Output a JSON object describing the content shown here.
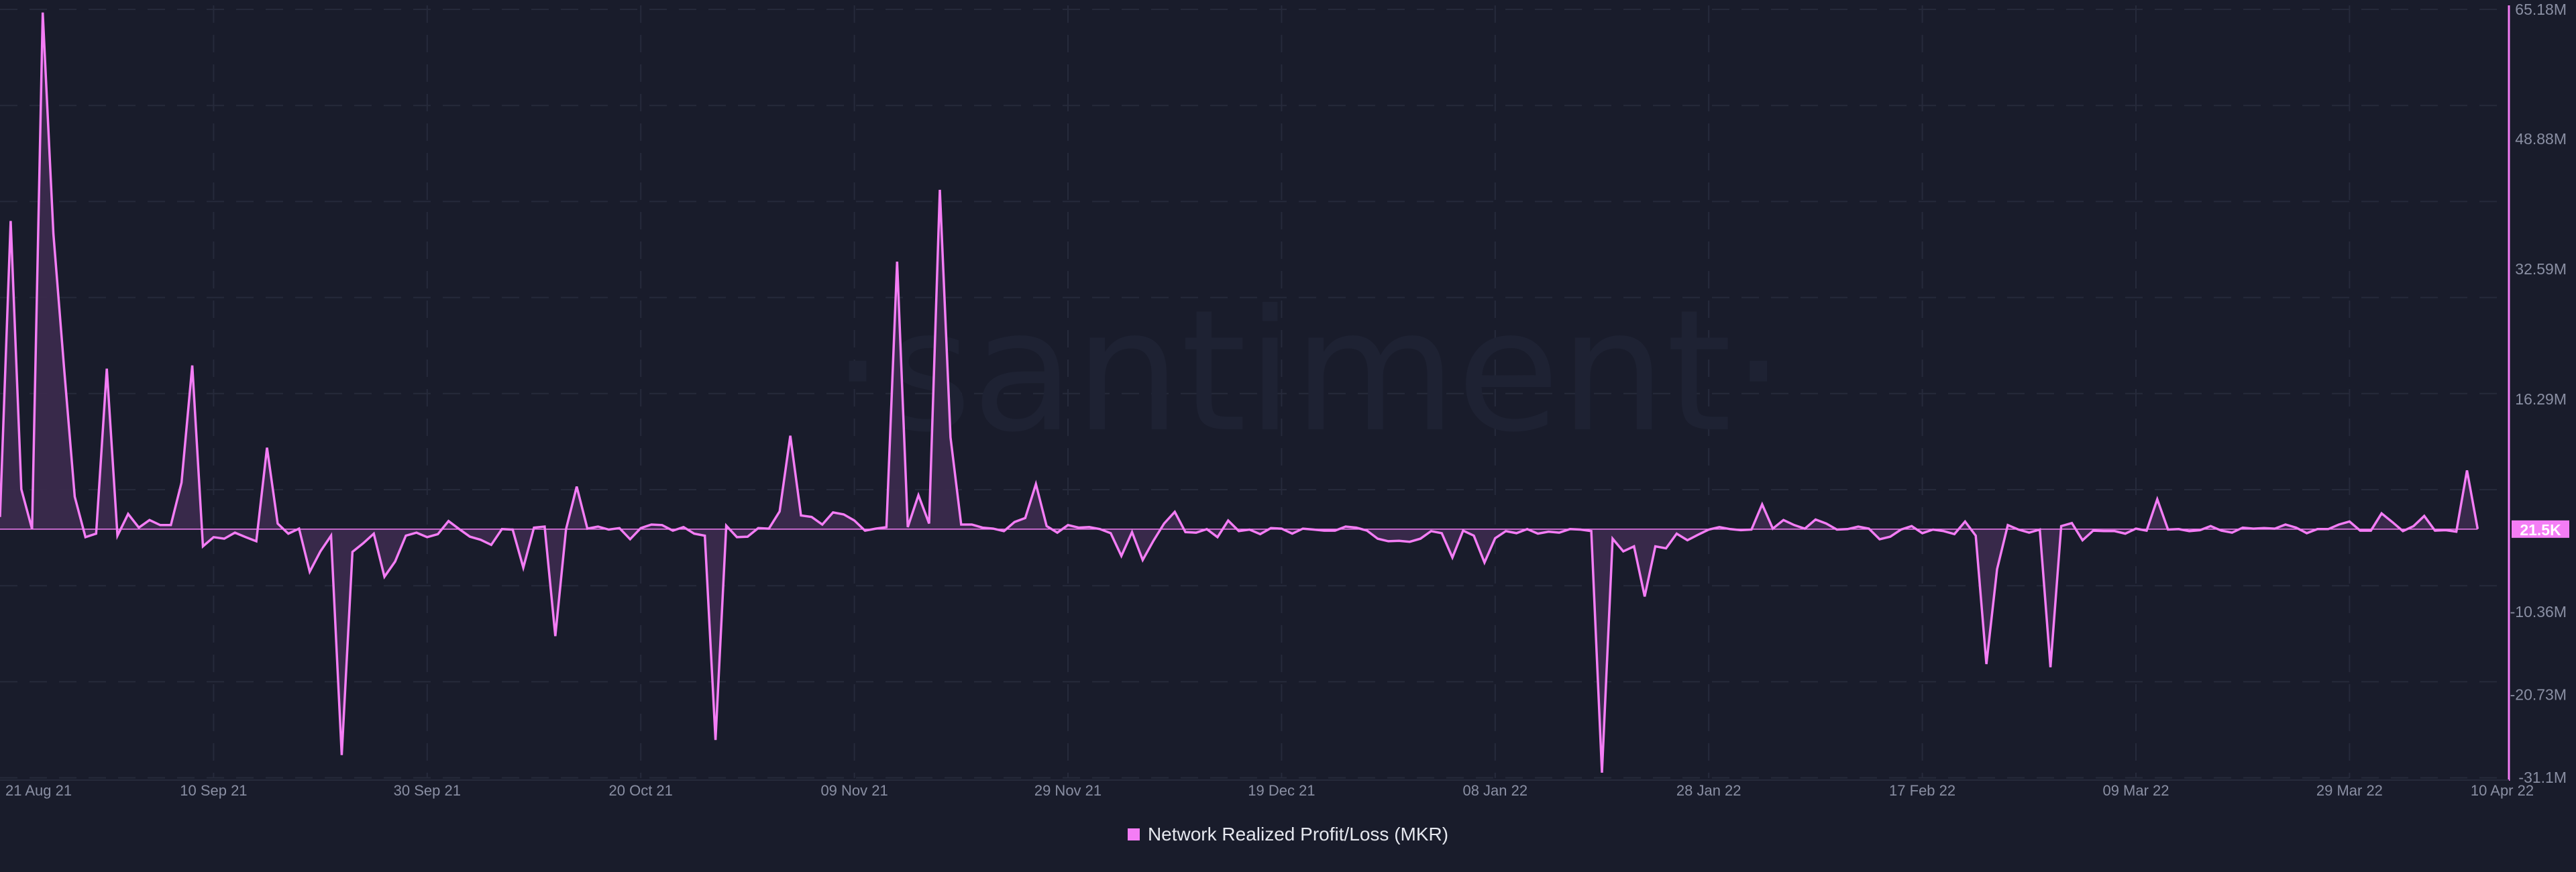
{
  "chart_data": {
    "type": "area",
    "title": "",
    "watermark": "·santiment·",
    "series": [
      {
        "name": "Network Realized Profit/Loss (MKR)",
        "unit": "M",
        "color": "#f47df5",
        "fill": "#3a2a4c",
        "start_date": "21 Aug 21",
        "end_date": "10 Apr 22",
        "interval": "1d",
        "values": [
          1.52,
          38.6,
          5.0,
          0,
          64.7,
          37.0,
          20.2,
          4.06,
          -1.01,
          -0.57,
          20.1,
          -0.82,
          1.9,
          0.19,
          1.14,
          0.51,
          0.51,
          5.83,
          20.5,
          -2.16,
          -1.01,
          -1.2,
          -0.44,
          -1.01,
          -1.52,
          10.2,
          0.7,
          -0.57,
          0.06,
          -5.33,
          -2.79,
          -0.82,
          -28.3,
          -2.85,
          -1.78,
          -0.57,
          -5.96,
          -4.06,
          -0.82,
          -0.44,
          -1.01,
          -0.63,
          1.01,
          0,
          -0.95,
          -1.33,
          -1.97,
          0,
          -0.06,
          -4.82,
          0.19,
          0.32,
          -13.4,
          0,
          5.33,
          0.06,
          0.32,
          -0.06,
          0.13,
          -1.27,
          0.13,
          0.57,
          0.51,
          -0.19,
          0.25,
          -0.57,
          -0.82,
          -26.4,
          0.44,
          -1.01,
          -0.95,
          0.13,
          0.06,
          2.22,
          11.7,
          1.71,
          1.52,
          0.57,
          2.09,
          1.84,
          1.08,
          -0.19,
          0.06,
          0.25,
          33.5,
          0.25,
          4.25,
          0.7,
          42.5,
          11.5,
          0.57,
          0.57,
          0.19,
          0.06,
          -0.25,
          0.89,
          1.39,
          5.64,
          0.38,
          -0.44,
          0.51,
          0.19,
          0.25,
          0,
          -0.51,
          -3.36,
          -0.38,
          -3.87,
          -1.46,
          0.7,
          2.16,
          -0.38,
          -0.44,
          0,
          -1.01,
          1.08,
          -0.25,
          -0.06,
          -0.63,
          0.13,
          0.06,
          -0.57,
          0.06,
          -0.06,
          -0.19,
          -0.19,
          0.32,
          0.19,
          -0.19,
          -1.2,
          -1.52,
          -1.46,
          -1.59,
          -1.2,
          -0.25,
          -0.51,
          -3.55,
          -0.19,
          -0.82,
          -4.18,
          -1.14,
          -0.25,
          -0.51,
          0,
          -0.57,
          -0.32,
          -0.44,
          0,
          -0.06,
          -0.25,
          -30.5,
          -1.2,
          -2.79,
          -2.16,
          -8.43,
          -2.16,
          -2.41,
          -0.57,
          -1.39,
          -0.7,
          -0.06,
          0.25,
          0,
          -0.13,
          -0.06,
          3.1,
          0.06,
          1.14,
          0.51,
          0.06,
          1.2,
          0.7,
          -0.06,
          0,
          0.32,
          0.06,
          -1.27,
          -0.95,
          -0.06,
          0.38,
          -0.51,
          -0.06,
          -0.25,
          -0.63,
          0.95,
          -0.82,
          -16.9,
          -5.01,
          0.51,
          -0.06,
          -0.44,
          -0.06,
          -17.3,
          0.38,
          0.76,
          -1.39,
          -0.19,
          -0.25,
          -0.25,
          -0.57,
          0.06,
          -0.19,
          3.74,
          -0.06,
          0,
          -0.25,
          -0.13,
          0.38,
          -0.19,
          -0.44,
          0.19,
          0.06,
          0.13,
          0.06,
          0.57,
          0.19,
          -0.51,
          0,
          0,
          0.57,
          0.95,
          -0.19,
          -0.19,
          1.97,
          0.89,
          -0.25,
          0.38,
          1.65,
          -0.19,
          -0.13,
          -0.32,
          7.35,
          0.0215
        ]
      }
    ],
    "last_value_label": "21.5K",
    "xlabel": "",
    "ylabel": "",
    "ylim": [
      -31.1,
      65.18
    ],
    "y_ticks": [
      {
        "value": 65.18,
        "label": "65.18M"
      },
      {
        "value": 48.88,
        "label": "48.88M"
      },
      {
        "value": 32.59,
        "label": "32.59M"
      },
      {
        "value": 16.29,
        "label": "16.29M"
      },
      {
        "value": -10.36,
        "label": "-10.36M"
      },
      {
        "value": -20.73,
        "label": "-20.73M"
      },
      {
        "value": -31.1,
        "label": "-31.1M"
      }
    ],
    "x_ticks": [
      {
        "day": 0,
        "label": "21 Aug 21"
      },
      {
        "day": 20,
        "label": "10 Sep 21"
      },
      {
        "day": 40,
        "label": "30 Sep 21"
      },
      {
        "day": 60,
        "label": "20 Oct 21"
      },
      {
        "day": 80,
        "label": "09 Nov 21"
      },
      {
        "day": 100,
        "label": "29 Nov 21"
      },
      {
        "day": 120,
        "label": "19 Dec 21"
      },
      {
        "day": 140,
        "label": "08 Jan 22"
      },
      {
        "day": 160,
        "label": "28 Jan 22"
      },
      {
        "day": 180,
        "label": "17 Feb 22"
      },
      {
        "day": 200,
        "label": "09 Mar 22"
      },
      {
        "day": 220,
        "label": "29 Mar 22"
      },
      {
        "day": 232,
        "label": "10 Apr 22"
      }
    ],
    "grid": true,
    "legend_position": "bottom-center"
  }
}
